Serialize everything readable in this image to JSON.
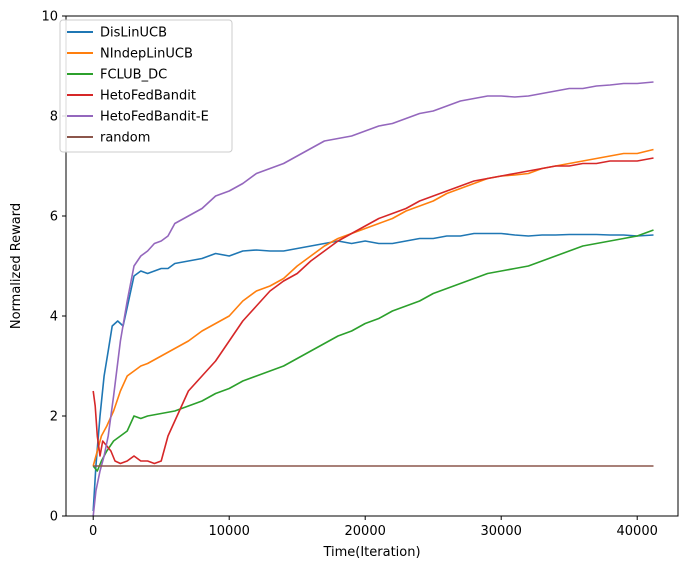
{
  "chart_data": {
    "type": "line",
    "title": "",
    "xlabel": "Time(Iteration)",
    "ylabel": "Normalized Reward",
    "xlim": [
      -2000,
      43000
    ],
    "ylim": [
      0,
      10
    ],
    "xticks": [
      0,
      10000,
      20000,
      30000,
      40000
    ],
    "yticks": [
      0,
      2,
      4,
      6,
      8,
      10
    ],
    "grid": false,
    "legend_position": "upper-left",
    "series": [
      {
        "name": "DisLinUCB",
        "color": "#1f77b4",
        "points": [
          [
            0,
            0.1
          ],
          [
            200,
            1.0
          ],
          [
            500,
            2.0
          ],
          [
            800,
            2.8
          ],
          [
            1100,
            3.3
          ],
          [
            1400,
            3.8
          ],
          [
            1800,
            3.9
          ],
          [
            2200,
            3.8
          ],
          [
            2600,
            4.3
          ],
          [
            3000,
            4.8
          ],
          [
            3500,
            4.9
          ],
          [
            4000,
            4.85
          ],
          [
            4500,
            4.9
          ],
          [
            5000,
            4.95
          ],
          [
            5500,
            4.95
          ],
          [
            6000,
            5.05
          ],
          [
            7000,
            5.1
          ],
          [
            8000,
            5.15
          ],
          [
            9000,
            5.25
          ],
          [
            10000,
            5.2
          ],
          [
            11000,
            5.3
          ],
          [
            12000,
            5.32
          ],
          [
            13000,
            5.3
          ],
          [
            14000,
            5.3
          ],
          [
            15000,
            5.35
          ],
          [
            16000,
            5.4
          ],
          [
            17000,
            5.45
          ],
          [
            18000,
            5.5
          ],
          [
            19000,
            5.45
          ],
          [
            20000,
            5.5
          ],
          [
            21000,
            5.45
          ],
          [
            22000,
            5.45
          ],
          [
            23000,
            5.5
          ],
          [
            24000,
            5.55
          ],
          [
            25000,
            5.55
          ],
          [
            26000,
            5.6
          ],
          [
            27000,
            5.6
          ],
          [
            28000,
            5.65
          ],
          [
            29000,
            5.65
          ],
          [
            30000,
            5.65
          ],
          [
            31000,
            5.62
          ],
          [
            32000,
            5.6
          ],
          [
            33000,
            5.62
          ],
          [
            34000,
            5.62
          ],
          [
            35000,
            5.63
          ],
          [
            36000,
            5.63
          ],
          [
            37000,
            5.63
          ],
          [
            38000,
            5.62
          ],
          [
            39000,
            5.62
          ],
          [
            40000,
            5.6
          ],
          [
            41200,
            5.62
          ]
        ]
      },
      {
        "name": "NIndepLinUCB",
        "color": "#ff7f0e",
        "points": [
          [
            0,
            1.0
          ],
          [
            300,
            1.3
          ],
          [
            600,
            1.6
          ],
          [
            1000,
            1.8
          ],
          [
            1500,
            2.1
          ],
          [
            2000,
            2.5
          ],
          [
            2500,
            2.8
          ],
          [
            3000,
            2.9
          ],
          [
            3500,
            3.0
          ],
          [
            4000,
            3.05
          ],
          [
            5000,
            3.2
          ],
          [
            6000,
            3.35
          ],
          [
            7000,
            3.5
          ],
          [
            8000,
            3.7
          ],
          [
            9000,
            3.85
          ],
          [
            10000,
            4.0
          ],
          [
            11000,
            4.3
          ],
          [
            12000,
            4.5
          ],
          [
            13000,
            4.6
          ],
          [
            14000,
            4.75
          ],
          [
            15000,
            5.0
          ],
          [
            16000,
            5.2
          ],
          [
            17000,
            5.4
          ],
          [
            18000,
            5.55
          ],
          [
            19000,
            5.65
          ],
          [
            20000,
            5.75
          ],
          [
            21000,
            5.85
          ],
          [
            22000,
            5.95
          ],
          [
            23000,
            6.1
          ],
          [
            24000,
            6.2
          ],
          [
            25000,
            6.3
          ],
          [
            26000,
            6.45
          ],
          [
            27000,
            6.55
          ],
          [
            28000,
            6.65
          ],
          [
            29000,
            6.75
          ],
          [
            30000,
            6.8
          ],
          [
            31000,
            6.82
          ],
          [
            32000,
            6.85
          ],
          [
            33000,
            6.95
          ],
          [
            34000,
            7.0
          ],
          [
            35000,
            7.05
          ],
          [
            36000,
            7.1
          ],
          [
            37000,
            7.15
          ],
          [
            38000,
            7.2
          ],
          [
            39000,
            7.25
          ],
          [
            40000,
            7.25
          ],
          [
            41200,
            7.33
          ]
        ]
      },
      {
        "name": "FCLUB_DC",
        "color": "#2ca02c",
        "points": [
          [
            0,
            1.0
          ],
          [
            300,
            0.9
          ],
          [
            600,
            1.1
          ],
          [
            1000,
            1.3
          ],
          [
            1500,
            1.5
          ],
          [
            2000,
            1.6
          ],
          [
            2500,
            1.7
          ],
          [
            3000,
            2.0
          ],
          [
            3500,
            1.95
          ],
          [
            4000,
            2.0
          ],
          [
            5000,
            2.05
          ],
          [
            6000,
            2.1
          ],
          [
            7000,
            2.2
          ],
          [
            8000,
            2.3
          ],
          [
            9000,
            2.45
          ],
          [
            10000,
            2.55
          ],
          [
            11000,
            2.7
          ],
          [
            12000,
            2.8
          ],
          [
            13000,
            2.9
          ],
          [
            14000,
            3.0
          ],
          [
            15000,
            3.15
          ],
          [
            16000,
            3.3
          ],
          [
            17000,
            3.45
          ],
          [
            18000,
            3.6
          ],
          [
            19000,
            3.7
          ],
          [
            20000,
            3.85
          ],
          [
            21000,
            3.95
          ],
          [
            22000,
            4.1
          ],
          [
            23000,
            4.2
          ],
          [
            24000,
            4.3
          ],
          [
            25000,
            4.45
          ],
          [
            26000,
            4.55
          ],
          [
            27000,
            4.65
          ],
          [
            28000,
            4.75
          ],
          [
            29000,
            4.85
          ],
          [
            30000,
            4.9
          ],
          [
            31000,
            4.95
          ],
          [
            32000,
            5.0
          ],
          [
            33000,
            5.1
          ],
          [
            34000,
            5.2
          ],
          [
            35000,
            5.3
          ],
          [
            36000,
            5.4
          ],
          [
            37000,
            5.45
          ],
          [
            38000,
            5.5
          ],
          [
            39000,
            5.55
          ],
          [
            40000,
            5.6
          ],
          [
            41200,
            5.72
          ]
        ]
      },
      {
        "name": "HetoFedBandit",
        "color": "#d62728",
        "points": [
          [
            0,
            2.5
          ],
          [
            150,
            2.2
          ],
          [
            300,
            1.6
          ],
          [
            500,
            1.2
          ],
          [
            700,
            1.5
          ],
          [
            1000,
            1.4
          ],
          [
            1300,
            1.3
          ],
          [
            1600,
            1.1
          ],
          [
            2000,
            1.05
          ],
          [
            2500,
            1.1
          ],
          [
            3000,
            1.2
          ],
          [
            3500,
            1.1
          ],
          [
            4000,
            1.1
          ],
          [
            4500,
            1.05
          ],
          [
            5000,
            1.1
          ],
          [
            5500,
            1.6
          ],
          [
            6000,
            1.9
          ],
          [
            6500,
            2.2
          ],
          [
            7000,
            2.5
          ],
          [
            8000,
            2.8
          ],
          [
            9000,
            3.1
          ],
          [
            10000,
            3.5
          ],
          [
            11000,
            3.9
          ],
          [
            12000,
            4.2
          ],
          [
            13000,
            4.5
          ],
          [
            14000,
            4.7
          ],
          [
            15000,
            4.85
          ],
          [
            16000,
            5.1
          ],
          [
            17000,
            5.3
          ],
          [
            18000,
            5.5
          ],
          [
            19000,
            5.65
          ],
          [
            20000,
            5.8
          ],
          [
            21000,
            5.95
          ],
          [
            22000,
            6.05
          ],
          [
            23000,
            6.15
          ],
          [
            24000,
            6.3
          ],
          [
            25000,
            6.4
          ],
          [
            26000,
            6.5
          ],
          [
            27000,
            6.6
          ],
          [
            28000,
            6.7
          ],
          [
            29000,
            6.75
          ],
          [
            30000,
            6.8
          ],
          [
            31000,
            6.85
          ],
          [
            32000,
            6.9
          ],
          [
            33000,
            6.95
          ],
          [
            34000,
            7.0
          ],
          [
            35000,
            7.0
          ],
          [
            36000,
            7.05
          ],
          [
            37000,
            7.05
          ],
          [
            38000,
            7.1
          ],
          [
            39000,
            7.1
          ],
          [
            40000,
            7.1
          ],
          [
            41200,
            7.16
          ]
        ]
      },
      {
        "name": "HetoFedBandit-E",
        "color": "#9467bd",
        "points": [
          [
            0,
            0.0
          ],
          [
            200,
            0.5
          ],
          [
            500,
            0.9
          ],
          [
            800,
            1.2
          ],
          [
            1100,
            1.6
          ],
          [
            1500,
            2.4
          ],
          [
            2000,
            3.5
          ],
          [
            2500,
            4.3
          ],
          [
            3000,
            5.0
          ],
          [
            3500,
            5.2
          ],
          [
            4000,
            5.3
          ],
          [
            4500,
            5.45
          ],
          [
            5000,
            5.5
          ],
          [
            5500,
            5.6
          ],
          [
            6000,
            5.85
          ],
          [
            7000,
            6.0
          ],
          [
            8000,
            6.15
          ],
          [
            9000,
            6.4
          ],
          [
            10000,
            6.5
          ],
          [
            11000,
            6.65
          ],
          [
            12000,
            6.85
          ],
          [
            13000,
            6.95
          ],
          [
            14000,
            7.05
          ],
          [
            15000,
            7.2
          ],
          [
            16000,
            7.35
          ],
          [
            17000,
            7.5
          ],
          [
            18000,
            7.55
          ],
          [
            19000,
            7.6
          ],
          [
            20000,
            7.7
          ],
          [
            21000,
            7.8
          ],
          [
            22000,
            7.85
          ],
          [
            23000,
            7.95
          ],
          [
            24000,
            8.05
          ],
          [
            25000,
            8.1
          ],
          [
            26000,
            8.2
          ],
          [
            27000,
            8.3
          ],
          [
            28000,
            8.35
          ],
          [
            29000,
            8.4
          ],
          [
            30000,
            8.4
          ],
          [
            31000,
            8.38
          ],
          [
            32000,
            8.4
          ],
          [
            33000,
            8.45
          ],
          [
            34000,
            8.5
          ],
          [
            35000,
            8.55
          ],
          [
            36000,
            8.55
          ],
          [
            37000,
            8.6
          ],
          [
            38000,
            8.62
          ],
          [
            39000,
            8.65
          ],
          [
            40000,
            8.65
          ],
          [
            41200,
            8.68
          ]
        ]
      },
      {
        "name": "random",
        "color": "#8c564b",
        "points": [
          [
            0,
            1.0
          ],
          [
            41200,
            1.0
          ]
        ]
      }
    ]
  }
}
